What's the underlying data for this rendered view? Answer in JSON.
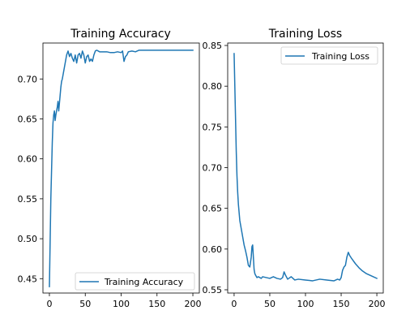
{
  "colors": {
    "series": "#1f77b4"
  },
  "chart_data": [
    {
      "type": "line",
      "title": "Training Accuracy",
      "xlabel": "",
      "ylabel": "",
      "xlim": [
        -9,
        209
      ],
      "ylim": [
        0.432,
        0.745
      ],
      "xticks": [
        0,
        50,
        100,
        150,
        200
      ],
      "xtick_labels": [
        "0",
        "50",
        "100",
        "150",
        "200"
      ],
      "yticks": [
        0.45,
        0.5,
        0.55,
        0.6,
        0.65,
        0.7
      ],
      "ytick_labels": [
        "0.45",
        "0.50",
        "0.55",
        "0.60",
        "0.65",
        "0.70"
      ],
      "legend_position": "lower-right",
      "grid": false,
      "series": [
        {
          "name": "Training Accuracy",
          "x": [
            0,
            2,
            4,
            5,
            6,
            7,
            8,
            9,
            10,
            11,
            12,
            13,
            14,
            15,
            16,
            17,
            18,
            19,
            20,
            22,
            24,
            26,
            28,
            30,
            32,
            34,
            36,
            38,
            40,
            42,
            44,
            46,
            48,
            50,
            52,
            54,
            56,
            58,
            60,
            62,
            64,
            66,
            68,
            70,
            75,
            80,
            85,
            90,
            95,
            100,
            102,
            104,
            106,
            108,
            110,
            115,
            120,
            125,
            130,
            140,
            150,
            160,
            170,
            180,
            190,
            200
          ],
          "y": [
            0.44,
            0.55,
            0.62,
            0.645,
            0.655,
            0.66,
            0.648,
            0.655,
            0.66,
            0.665,
            0.672,
            0.66,
            0.67,
            0.68,
            0.69,
            0.697,
            0.7,
            0.705,
            0.71,
            0.72,
            0.73,
            0.735,
            0.728,
            0.732,
            0.726,
            0.722,
            0.73,
            0.72,
            0.73,
            0.732,
            0.726,
            0.735,
            0.73,
            0.72,
            0.728,
            0.73,
            0.722,
            0.725,
            0.722,
            0.73,
            0.735,
            0.736,
            0.735,
            0.734,
            0.734,
            0.734,
            0.733,
            0.733,
            0.734,
            0.733,
            0.735,
            0.722,
            0.728,
            0.73,
            0.734,
            0.735,
            0.734,
            0.736,
            0.736,
            0.736,
            0.736,
            0.736,
            0.736,
            0.736,
            0.736,
            0.736
          ]
        }
      ]
    },
    {
      "type": "line",
      "title": "Training Loss",
      "xlabel": "",
      "ylabel": "",
      "xlim": [
        -9,
        209
      ],
      "ylim": [
        0.546,
        0.853
      ],
      "xticks": [
        0,
        50,
        100,
        150,
        200
      ],
      "xtick_labels": [
        "0",
        "50",
        "100",
        "150",
        "200"
      ],
      "yticks": [
        0.55,
        0.6,
        0.65,
        0.7,
        0.75,
        0.8,
        0.85
      ],
      "ytick_labels": [
        "0.55",
        "0.60",
        "0.65",
        "0.70",
        "0.75",
        "0.80",
        "0.85"
      ],
      "legend_position": "upper-right",
      "grid": false,
      "series": [
        {
          "name": "Training Loss",
          "x": [
            0,
            1,
            2,
            3,
            4,
            5,
            6,
            7,
            8,
            10,
            12,
            14,
            16,
            18,
            20,
            22,
            24,
            25,
            26,
            27,
            28,
            29,
            30,
            32,
            34,
            36,
            38,
            40,
            45,
            50,
            55,
            60,
            65,
            68,
            70,
            72,
            75,
            80,
            85,
            90,
            100,
            110,
            120,
            130,
            140,
            145,
            148,
            150,
            152,
            154,
            156,
            158,
            160,
            162,
            165,
            170,
            175,
            180,
            185,
            190,
            195,
            200
          ],
          "y": [
            0.84,
            0.8,
            0.76,
            0.72,
            0.69,
            0.67,
            0.655,
            0.645,
            0.635,
            0.625,
            0.615,
            0.605,
            0.598,
            0.59,
            0.58,
            0.578,
            0.59,
            0.603,
            0.605,
            0.59,
            0.575,
            0.57,
            0.568,
            0.565,
            0.566,
            0.565,
            0.564,
            0.566,
            0.565,
            0.564,
            0.566,
            0.564,
            0.563,
            0.565,
            0.572,
            0.568,
            0.563,
            0.566,
            0.562,
            0.563,
            0.562,
            0.561,
            0.563,
            0.562,
            0.561,
            0.563,
            0.562,
            0.565,
            0.574,
            0.578,
            0.58,
            0.59,
            0.596,
            0.592,
            0.588,
            0.582,
            0.577,
            0.573,
            0.57,
            0.568,
            0.566,
            0.564
          ]
        }
      ]
    }
  ]
}
